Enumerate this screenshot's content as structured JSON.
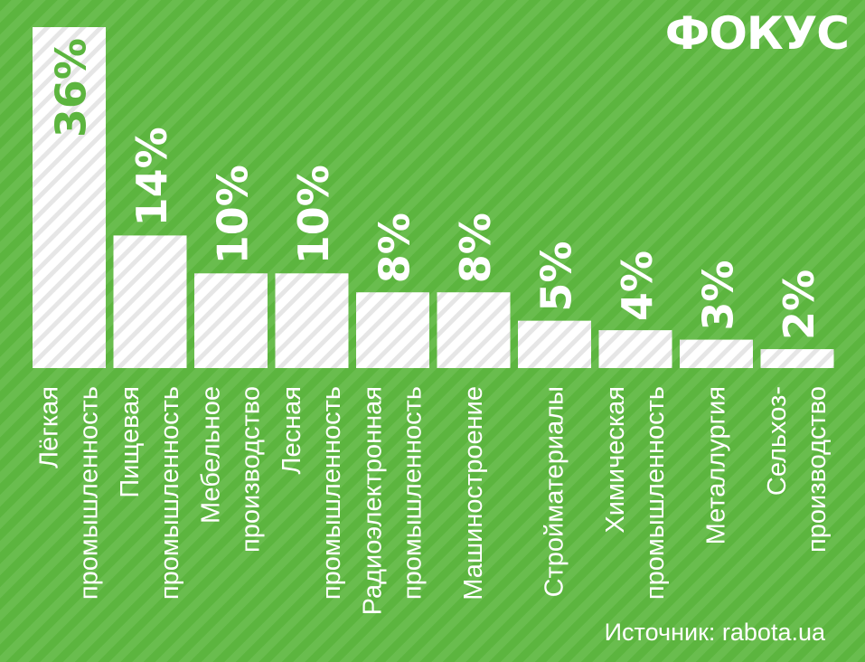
{
  "brand": {
    "logo_text": "ФОКУС"
  },
  "source": "Источник: rabota.ua",
  "colors": {
    "background": "#5cb53f",
    "bar": "#ffffff",
    "label_on_bar": "#5cb53f",
    "label": "#ffffff"
  },
  "chart_data": {
    "type": "bar",
    "title": "",
    "xlabel": "",
    "ylabel": "",
    "ylim": [
      0,
      36
    ],
    "grid": false,
    "legend": "none",
    "unit": "%",
    "categories": [
      [
        "Лёгкая",
        "промышленность"
      ],
      [
        "Пищевая",
        "промышленность"
      ],
      [
        "Мебельное",
        "производство"
      ],
      [
        "Лесная",
        "промышленность"
      ],
      [
        "Радиоэлектронная",
        "промышленность"
      ],
      [
        "Машиностроение"
      ],
      [
        "Стройматериалы"
      ],
      [
        "Химическая",
        "промышленность"
      ],
      [
        "Металлургия"
      ],
      [
        "Сельхоз-",
        "производство"
      ]
    ],
    "values": [
      36,
      14,
      10,
      10,
      8,
      8,
      5,
      4,
      3,
      2
    ],
    "value_labels": [
      "36%",
      "14%",
      "10%",
      "10%",
      "8%",
      "8%",
      "5%",
      "4%",
      "3%",
      "2%"
    ]
  }
}
